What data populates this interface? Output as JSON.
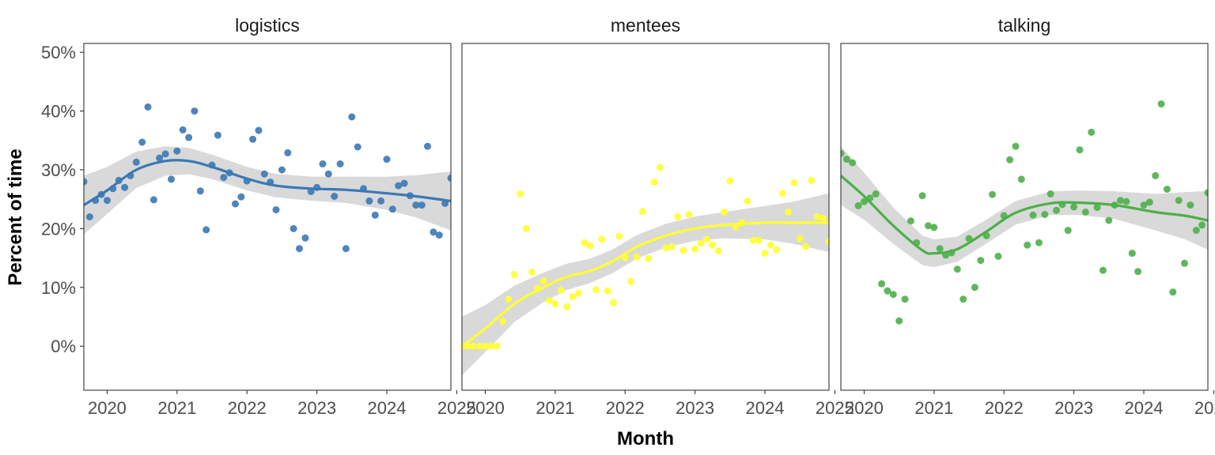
{
  "chart_data": {
    "type": "scatter",
    "xlabel": "Month",
    "ylabel": "Percent of time",
    "x_ticks": [
      "2020",
      "2021",
      "2022",
      "2023",
      "2024",
      "2025"
    ],
    "y_ticks": [
      "0%",
      "10%",
      "20%",
      "30%",
      "40%",
      "50%"
    ],
    "xlim": [
      "2019-09",
      "2024-12"
    ],
    "ylim": [
      -7.5,
      51.5
    ],
    "grid": false,
    "legend": "none",
    "panels": [
      {
        "title": "logistics",
        "color": "#3a78b5",
        "points": [
          [
            "2019-09",
            28.0
          ],
          [
            "2019-10",
            22.0
          ],
          [
            "2019-11",
            24.8
          ],
          [
            "2019-12",
            25.8
          ],
          [
            "2020-01",
            24.8
          ],
          [
            "2020-02",
            26.8
          ],
          [
            "2020-03",
            28.2
          ],
          [
            "2020-04",
            27.0
          ],
          [
            "2020-05",
            29.0
          ],
          [
            "2020-06",
            31.3
          ],
          [
            "2020-07",
            34.7
          ],
          [
            "2020-08",
            40.7
          ],
          [
            "2020-09",
            24.9
          ],
          [
            "2020-10",
            32.0
          ],
          [
            "2020-11",
            32.7
          ],
          [
            "2020-12",
            28.4
          ],
          [
            "2021-01",
            33.2
          ],
          [
            "2021-02",
            36.8
          ],
          [
            "2021-03",
            35.5
          ],
          [
            "2021-04",
            40.0
          ],
          [
            "2021-05",
            26.4
          ],
          [
            "2021-06",
            19.8
          ],
          [
            "2021-07",
            30.8
          ],
          [
            "2021-08",
            35.9
          ],
          [
            "2021-09",
            28.7
          ],
          [
            "2021-10",
            29.5
          ],
          [
            "2021-11",
            24.2
          ],
          [
            "2021-12",
            25.4
          ],
          [
            "2022-01",
            28.1
          ],
          [
            "2022-02",
            35.2
          ],
          [
            "2022-03",
            36.7
          ],
          [
            "2022-04",
            29.3
          ],
          [
            "2022-05",
            27.9
          ],
          [
            "2022-06",
            23.2
          ],
          [
            "2022-07",
            30.0
          ],
          [
            "2022-08",
            32.9
          ],
          [
            "2022-09",
            20.0
          ],
          [
            "2022-10",
            16.6
          ],
          [
            "2022-11",
            18.4
          ],
          [
            "2022-12",
            26.3
          ],
          [
            "2023-01",
            27.0
          ],
          [
            "2023-02",
            31.0
          ],
          [
            "2023-03",
            29.3
          ],
          [
            "2023-04",
            25.5
          ],
          [
            "2023-05",
            31.0
          ],
          [
            "2023-06",
            16.6
          ],
          [
            "2023-07",
            39.0
          ],
          [
            "2023-08",
            33.9
          ],
          [
            "2023-09",
            26.8
          ],
          [
            "2023-10",
            24.7
          ],
          [
            "2023-11",
            22.3
          ],
          [
            "2023-12",
            24.7
          ],
          [
            "2024-01",
            31.8
          ],
          [
            "2024-02",
            23.3
          ],
          [
            "2024-03",
            27.3
          ],
          [
            "2024-04",
            27.7
          ],
          [
            "2024-05",
            25.6
          ],
          [
            "2024-06",
            24.0
          ],
          [
            "2024-07",
            24.0
          ],
          [
            "2024-08",
            34.0
          ],
          [
            "2024-09",
            19.4
          ],
          [
            "2024-10",
            18.9
          ],
          [
            "2024-11",
            24.3
          ],
          [
            "2024-12",
            28.6
          ]
        ],
        "trend": [
          [
            "2019-09",
            24.0
          ],
          [
            "2020-01",
            26.5
          ],
          [
            "2020-06",
            30.0
          ],
          [
            "2020-11",
            31.5
          ],
          [
            "2021-03",
            31.5
          ],
          [
            "2021-07",
            30.5
          ],
          [
            "2022-01",
            28.5
          ],
          [
            "2022-06",
            27.3
          ],
          [
            "2022-12",
            26.8
          ],
          [
            "2023-06",
            26.6
          ],
          [
            "2024-01",
            26.0
          ],
          [
            "2024-06",
            25.5
          ],
          [
            "2024-12",
            24.7
          ]
        ]
      },
      {
        "title": "mentees",
        "color": "#ffff33",
        "points": [
          [
            "2019-09",
            0.0
          ],
          [
            "2019-10",
            0.0
          ],
          [
            "2019-11",
            0.0
          ],
          [
            "2019-12",
            0.0
          ],
          [
            "2020-01",
            0.0
          ],
          [
            "2020-02",
            0.0
          ],
          [
            "2020-03",
            0.0
          ],
          [
            "2020-04",
            4.2
          ],
          [
            "2020-05",
            8.0
          ],
          [
            "2020-06",
            12.2
          ],
          [
            "2020-07",
            25.9
          ],
          [
            "2020-08",
            20.0
          ],
          [
            "2020-09",
            12.6
          ],
          [
            "2020-10",
            9.8
          ],
          [
            "2020-11",
            11.1
          ],
          [
            "2020-12",
            7.8
          ],
          [
            "2021-01",
            7.2
          ],
          [
            "2021-02",
            9.5
          ],
          [
            "2021-03",
            6.7
          ],
          [
            "2021-04",
            8.4
          ],
          [
            "2021-05",
            9.0
          ],
          [
            "2021-06",
            17.6
          ],
          [
            "2021-07",
            17.1
          ],
          [
            "2021-08",
            9.6
          ],
          [
            "2021-09",
            18.2
          ],
          [
            "2021-10",
            9.4
          ],
          [
            "2021-11",
            7.4
          ],
          [
            "2021-12",
            18.7
          ],
          [
            "2022-01",
            15.1
          ],
          [
            "2022-02",
            11.0
          ],
          [
            "2022-03",
            15.2
          ],
          [
            "2022-04",
            22.9
          ],
          [
            "2022-05",
            14.9
          ],
          [
            "2022-06",
            27.9
          ],
          [
            "2022-07",
            30.4
          ],
          [
            "2022-08",
            16.7
          ],
          [
            "2022-09",
            16.9
          ],
          [
            "2022-10",
            22.0
          ],
          [
            "2022-11",
            16.3
          ],
          [
            "2022-12",
            22.4
          ],
          [
            "2023-01",
            16.5
          ],
          [
            "2023-02",
            17.5
          ],
          [
            "2023-03",
            18.2
          ],
          [
            "2023-04",
            17.2
          ],
          [
            "2023-05",
            16.2
          ],
          [
            "2023-06",
            22.8
          ],
          [
            "2023-07",
            28.1
          ],
          [
            "2023-08",
            20.3
          ],
          [
            "2023-09",
            21.0
          ],
          [
            "2023-10",
            24.7
          ],
          [
            "2023-11",
            18.0
          ],
          [
            "2023-12",
            18.0
          ],
          [
            "2024-01",
            15.8
          ],
          [
            "2024-02",
            17.2
          ],
          [
            "2024-03",
            16.4
          ],
          [
            "2024-04",
            26.0
          ],
          [
            "2024-05",
            22.8
          ],
          [
            "2024-06",
            27.8
          ],
          [
            "2024-07",
            18.3
          ],
          [
            "2024-08",
            17.0
          ],
          [
            "2024-09",
            28.2
          ],
          [
            "2024-10",
            22.0
          ],
          [
            "2024-11",
            21.8
          ],
          [
            "2024-12",
            17.8
          ]
        ],
        "trend": [
          [
            "2019-09",
            0.0
          ],
          [
            "2020-01",
            3.0
          ],
          [
            "2020-06",
            7.2
          ],
          [
            "2020-11",
            10.0
          ],
          [
            "2021-03",
            11.8
          ],
          [
            "2021-07",
            12.8
          ],
          [
            "2021-11",
            14.5
          ],
          [
            "2022-03",
            16.9
          ],
          [
            "2022-08",
            18.8
          ],
          [
            "2023-01",
            20.0
          ],
          [
            "2023-06",
            20.6
          ],
          [
            "2024-01",
            21.0
          ],
          [
            "2024-06",
            21.0
          ],
          [
            "2024-12",
            21.0
          ]
        ]
      },
      {
        "title": "talking",
        "color": "#4daf4a",
        "points": [
          [
            "2019-09",
            32.8
          ],
          [
            "2019-10",
            31.8
          ],
          [
            "2019-11",
            31.2
          ],
          [
            "2019-12",
            23.9
          ],
          [
            "2020-01",
            24.6
          ],
          [
            "2020-02",
            25.2
          ],
          [
            "2020-03",
            25.9
          ],
          [
            "2020-04",
            10.6
          ],
          [
            "2020-05",
            9.4
          ],
          [
            "2020-06",
            8.8
          ],
          [
            "2020-07",
            4.3
          ],
          [
            "2020-08",
            8.0
          ],
          [
            "2020-09",
            21.3
          ],
          [
            "2020-10",
            17.6
          ],
          [
            "2020-11",
            25.6
          ],
          [
            "2020-12",
            20.5
          ],
          [
            "2021-01",
            20.2
          ],
          [
            "2021-02",
            16.6
          ],
          [
            "2021-03",
            15.5
          ],
          [
            "2021-04",
            15.9
          ],
          [
            "2021-05",
            13.1
          ],
          [
            "2021-06",
            8.0
          ],
          [
            "2021-07",
            18.3
          ],
          [
            "2021-08",
            10.0
          ],
          [
            "2021-09",
            14.6
          ],
          [
            "2021-10",
            18.8
          ],
          [
            "2021-11",
            25.8
          ],
          [
            "2021-12",
            15.3
          ],
          [
            "2022-01",
            22.2
          ],
          [
            "2022-02",
            31.7
          ],
          [
            "2022-03",
            34.0
          ],
          [
            "2022-04",
            28.4
          ],
          [
            "2022-05",
            17.2
          ],
          [
            "2022-06",
            22.3
          ],
          [
            "2022-07",
            17.6
          ],
          [
            "2022-08",
            22.4
          ],
          [
            "2022-09",
            25.9
          ],
          [
            "2022-10",
            23.1
          ],
          [
            "2022-11",
            24.1
          ],
          [
            "2022-12",
            19.7
          ],
          [
            "2023-01",
            23.7
          ],
          [
            "2023-02",
            33.4
          ],
          [
            "2023-03",
            22.8
          ],
          [
            "2023-04",
            36.4
          ],
          [
            "2023-05",
            23.6
          ],
          [
            "2023-06",
            12.9
          ],
          [
            "2023-07",
            21.4
          ],
          [
            "2023-08",
            24.0
          ],
          [
            "2023-09",
            24.8
          ],
          [
            "2023-10",
            24.6
          ],
          [
            "2023-11",
            15.8
          ],
          [
            "2023-12",
            12.7
          ],
          [
            "2024-01",
            24.0
          ],
          [
            "2024-02",
            24.5
          ],
          [
            "2024-03",
            29.0
          ],
          [
            "2024-04",
            41.2
          ],
          [
            "2024-05",
            26.7
          ],
          [
            "2024-06",
            9.2
          ],
          [
            "2024-07",
            24.8
          ],
          [
            "2024-08",
            14.1
          ],
          [
            "2024-09",
            24.0
          ],
          [
            "2024-10",
            19.7
          ],
          [
            "2024-11",
            20.6
          ],
          [
            "2024-12",
            26.1
          ]
        ],
        "trend": [
          [
            "2019-09",
            29.0
          ],
          [
            "2020-01",
            25.5
          ],
          [
            "2020-06",
            20.5
          ],
          [
            "2020-11",
            16.3
          ],
          [
            "2021-01",
            15.8
          ],
          [
            "2021-05",
            16.5
          ],
          [
            "2021-10",
            19.5
          ],
          [
            "2022-03",
            22.7
          ],
          [
            "2022-09",
            24.3
          ],
          [
            "2023-02",
            24.4
          ],
          [
            "2023-08",
            24.0
          ],
          [
            "2024-03",
            22.8
          ],
          [
            "2024-08",
            22.2
          ],
          [
            "2024-12",
            21.4
          ]
        ]
      }
    ]
  }
}
